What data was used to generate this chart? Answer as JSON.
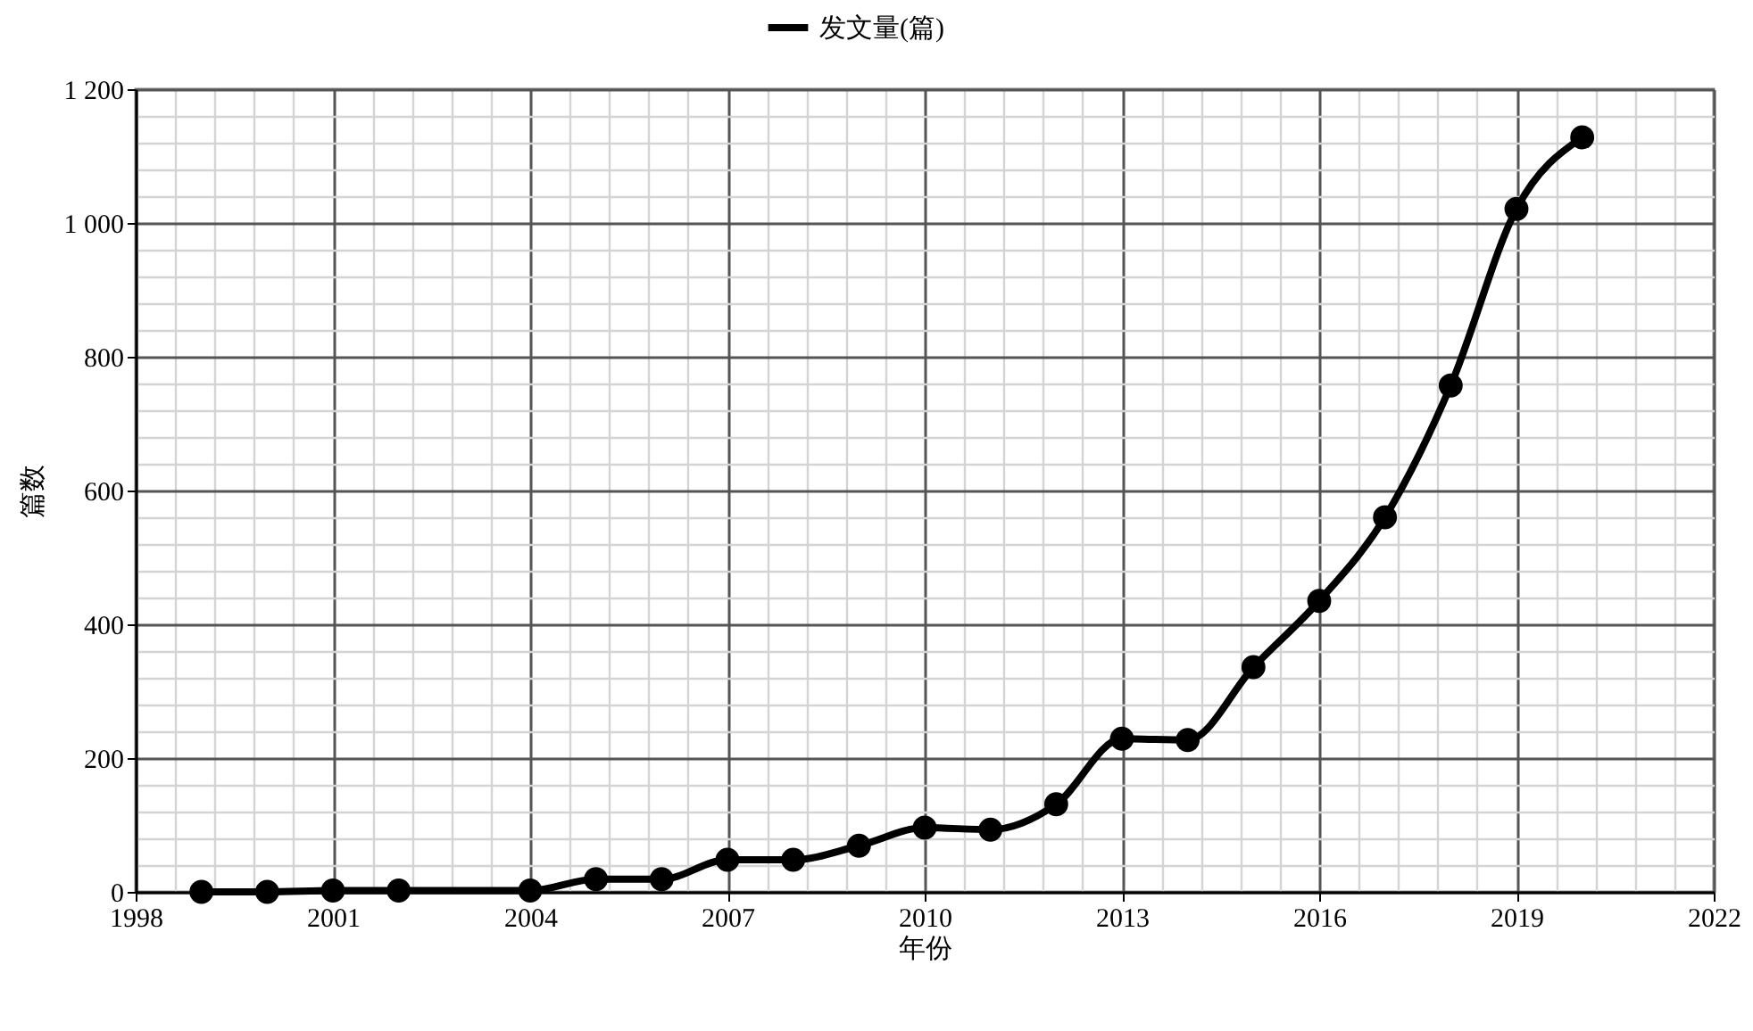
{
  "chart_data": {
    "type": "line",
    "xlabel": "年份",
    "ylabel": "篇数",
    "x": [
      1999,
      2000,
      2001,
      2002,
      2004,
      2005,
      2006,
      2007,
      2008,
      2009,
      2010,
      2011,
      2012,
      2013,
      2014,
      2015,
      2016,
      2017,
      2018,
      2019,
      2020
    ],
    "series": [
      {
        "name": "发文量(篇)",
        "color": "#000000",
        "values": [
          0,
          0,
          2,
          2,
          2,
          19,
          19,
          48,
          48,
          69,
          96,
          93,
          131,
          229,
          227,
          336,
          435,
          560,
          757,
          1021,
          1128
        ]
      }
    ],
    "xlim": [
      1998,
      2022
    ],
    "xticks": [
      1998,
      2001,
      2004,
      2007,
      2010,
      2013,
      2016,
      2019,
      2022
    ],
    "ylim": [
      0,
      1200
    ],
    "yticks": [
      0,
      200,
      400,
      600,
      800,
      {
        "value": 1000,
        "label": "1 000"
      },
      {
        "value": 1200,
        "label": "1 200"
      }
    ],
    "grid": true,
    "legend": "top",
    "marker": "circle",
    "line_style": "solid"
  }
}
